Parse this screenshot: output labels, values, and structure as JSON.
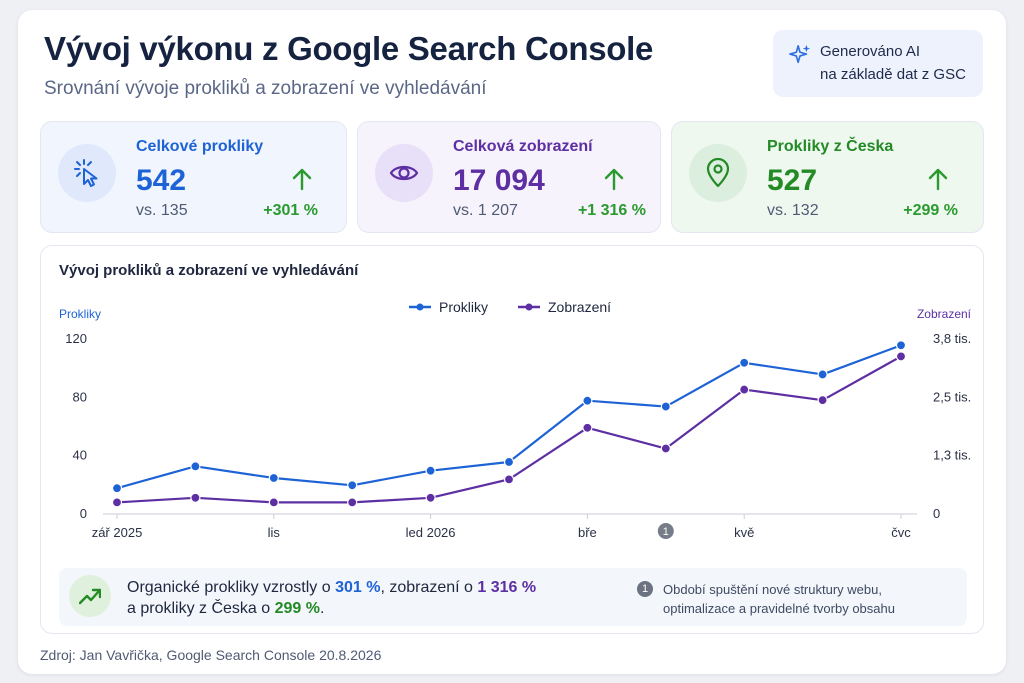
{
  "header": {
    "title": "Vývoj výkonu z Google Search Console",
    "subtitle": "Srovnání vývoje prokliků a zobrazení ve vyhledávání",
    "ai_badge_line1": "Generováno AI",
    "ai_badge_line2": "na základě dat z GSC"
  },
  "cards": [
    {
      "label": "Celkové prokliky",
      "value": "542",
      "previous": "vs. 135",
      "change": "+301 %",
      "icon": "cursor-click-icon",
      "color": "#1e63d6"
    },
    {
      "label": "Celková zobrazení",
      "value": "17 094",
      "previous": "vs. 1 207",
      "change": "+1 316 %",
      "icon": "eye-icon",
      "color": "#5d2fa3"
    },
    {
      "label": "Prokliky z Česka",
      "value": "527",
      "previous": "vs. 132",
      "change": "+299 %",
      "icon": "location-pin-icon",
      "color": "#238a26"
    }
  ],
  "chart_data": {
    "type": "line",
    "title": "Vývoj prokliků a zobrazení ve vyhledávání",
    "legend_position": "top-center",
    "grid": false,
    "y_left": {
      "label": "Prokliky",
      "ticks": [
        "120",
        "80",
        "40",
        "0"
      ],
      "range": [
        0,
        120
      ]
    },
    "y_right": {
      "label": "Zobrazení",
      "ticks": [
        "3,8 tis.",
        "2,5 tis.",
        "1,3 tis.",
        "0"
      ],
      "range": [
        0,
        3800
      ]
    },
    "x_ticks": [
      "zář 2025",
      "lis",
      "led 2026",
      "bře",
      "kvě",
      "čvc"
    ],
    "annotation": {
      "marker": "1",
      "near": "bře–dub 2026"
    },
    "series": [
      {
        "name": "Prokliky",
        "axis": "left",
        "color": "#1e63d6",
        "values": [
          17,
          32,
          24,
          19,
          29,
          35,
          77,
          73,
          103,
          95,
          115
        ]
      },
      {
        "name": "Zobrazení",
        "axis": "right",
        "color": "#5d2fa3",
        "values": [
          230,
          330,
          230,
          230,
          330,
          730,
          1850,
          1400,
          2680,
          2450,
          3400
        ]
      }
    ]
  },
  "summary": {
    "part1": "Organické prokliky vzrostly o ",
    "clicks": "301 %",
    "part2": ", zobrazení o ",
    "impressions": "1 316 %",
    "part3": "a prokliky z Česka o ",
    "czech": "299 %",
    "part4": ".",
    "icon": "trend-up-icon"
  },
  "note": {
    "marker": "1",
    "line1": "Období spuštění nové struktury webu,",
    "line2": "optimalizace a pravidelné tvorby obsahu"
  },
  "source": "Zdroj: Jan Vavřička, Google Search Console 20.8.2026"
}
